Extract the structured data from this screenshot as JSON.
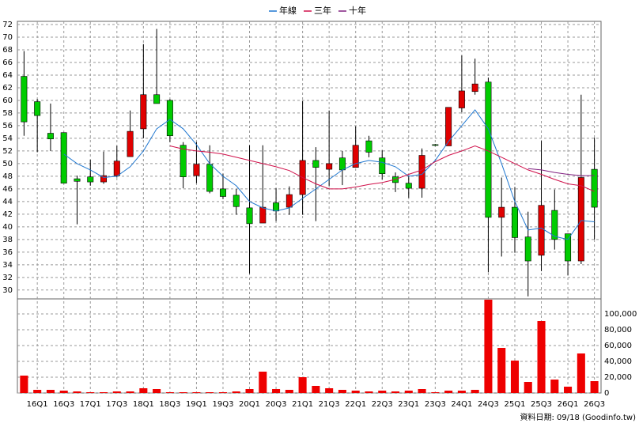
{
  "chart_data": {
    "type": "candlestick",
    "legend_position": "top",
    "categories": [
      null,
      "16Q1",
      null,
      "16Q3",
      null,
      "17Q1",
      null,
      "17Q3",
      null,
      "18Q1",
      null,
      "18Q3",
      null,
      "19Q1",
      null,
      "19Q3",
      null,
      "20Q1",
      null,
      "20Q3",
      null,
      "21Q1",
      null,
      "21Q3",
      null,
      "22Q1",
      null,
      "22Q3",
      null,
      "23Q1",
      null,
      "23Q3",
      null,
      "24Q1",
      null,
      "24Q3",
      null,
      "25Q1",
      null,
      "25Q3",
      null,
      "26Q1",
      null,
      "26Q3"
    ],
    "open": [
      63.8,
      59.8,
      54.8,
      54.9,
      47.6,
      47.9,
      47.1,
      48.1,
      51.1,
      55.5,
      60.9,
      60.0,
      52.9,
      48.1,
      49.9,
      46.0,
      45.0,
      43.0,
      40.6,
      43.8,
      43.1,
      45.1,
      50.5,
      49.1,
      50.9,
      49.4,
      53.6,
      50.9,
      47.9,
      46.9,
      46.1,
      53.0,
      52.8,
      58.8,
      61.4,
      62.9,
      41.5,
      43.1,
      38.4,
      35.5,
      42.6,
      38.9,
      34.6,
      49.1
    ],
    "high": [
      67.8,
      60.2,
      59.5,
      54.9,
      48.1,
      50.6,
      51.9,
      52.8,
      58.4,
      68.9,
      71.3,
      60.2,
      53.4,
      53.4,
      52.9,
      48.4,
      46.0,
      52.9,
      52.9,
      46.1,
      46.4,
      59.9,
      52.6,
      58.4,
      52.0,
      55.9,
      54.4,
      52.1,
      48.6,
      48.1,
      52.4,
      53.1,
      58.9,
      67.1,
      66.6,
      63.6,
      47.8,
      46.3,
      42.4,
      53.6,
      45.9,
      38.9,
      60.9,
      54.1
    ],
    "low": [
      54.4,
      51.8,
      52.0,
      46.9,
      40.4,
      46.5,
      46.8,
      47.8,
      51.1,
      54.0,
      59.5,
      53.4,
      46.1,
      46.9,
      45.3,
      44.4,
      41.9,
      32.6,
      40.6,
      40.9,
      41.9,
      41.9,
      40.9,
      46.4,
      46.6,
      49.4,
      51.0,
      47.5,
      45.5,
      44.6,
      44.6,
      52.8,
      52.8,
      58.1,
      60.9,
      32.8,
      35.3,
      35.9,
      29.0,
      33.0,
      36.4,
      32.3,
      34.1,
      38.0
    ],
    "close": [
      56.6,
      57.6,
      53.9,
      46.9,
      47.2,
      47.1,
      48.1,
      50.4,
      55.1,
      60.9,
      59.5,
      54.4,
      47.9,
      49.9,
      45.6,
      44.8,
      43.2,
      40.5,
      43.1,
      42.5,
      45.1,
      50.5,
      49.4,
      50.0,
      49.0,
      52.9,
      51.8,
      48.4,
      47.0,
      46.1,
      51.3,
      52.9,
      58.9,
      61.5,
      62.6,
      41.5,
      43.1,
      38.3,
      34.6,
      43.4,
      38.0,
      34.6,
      47.8,
      43.1
    ],
    "up_color": "#e00000",
    "down_color": "#00cc00",
    "series": [
      {
        "name": "年線",
        "color": "#1f77d0",
        "values": [
          null,
          null,
          null,
          51.5,
          50.0,
          49.0,
          47.8,
          48.0,
          49.5,
          52.0,
          55.5,
          57.0,
          55.5,
          53.0,
          50.0,
          48.0,
          46.5,
          44.0,
          43.0,
          42.5,
          43.0,
          44.5,
          46.0,
          47.5,
          49.0,
          50.0,
          50.5,
          50.2,
          49.5,
          48.0,
          48.3,
          50.5,
          53.5,
          56.0,
          58.5,
          55.5,
          50.0,
          44.0,
          39.5,
          39.8,
          38.5,
          38.0,
          41.0,
          40.8
        ]
      },
      {
        "name": "三年",
        "color": "#d0104a",
        "values": [
          null,
          null,
          null,
          null,
          null,
          null,
          null,
          null,
          null,
          null,
          null,
          52.8,
          52.3,
          52.0,
          51.8,
          51.5,
          51.0,
          50.5,
          50.0,
          49.5,
          48.9,
          47.8,
          46.8,
          46.0,
          46.0,
          46.3,
          46.7,
          47.0,
          47.5,
          48.3,
          49.0,
          50.3,
          51.3,
          52.0,
          52.8,
          52.0,
          51.0,
          50.0,
          49.0,
          48.3,
          47.5,
          46.8,
          46.5,
          45.6
        ]
      },
      {
        "name": "十年",
        "color": "#802080",
        "values": [
          null,
          null,
          null,
          null,
          null,
          null,
          null,
          null,
          null,
          null,
          null,
          null,
          null,
          null,
          null,
          null,
          null,
          null,
          null,
          null,
          null,
          null,
          null,
          null,
          null,
          null,
          null,
          null,
          null,
          null,
          null,
          null,
          null,
          null,
          null,
          null,
          null,
          null,
          49.2,
          49.0,
          48.6,
          48.3,
          48.1,
          48.1
        ]
      }
    ],
    "ylim": [
      28.6,
      72.5
    ],
    "yticks": [
      30,
      32,
      34,
      36,
      38,
      40,
      42,
      44,
      46,
      48,
      50,
      52,
      54,
      56,
      58,
      60,
      62,
      64,
      66,
      68,
      70,
      72
    ],
    "grid": true,
    "volume": {
      "type": "bar",
      "color": "#ee0000",
      "values": [
        22000,
        4000,
        4000,
        3000,
        2000,
        1000,
        1000,
        2000,
        2000,
        6000,
        5000,
        1000,
        1000,
        1000,
        1000,
        1000,
        2000,
        5000,
        27000,
        5000,
        4000,
        20000,
        9000,
        6000,
        4000,
        3000,
        2000,
        3000,
        2000,
        3000,
        5000,
        1000,
        3000,
        3000,
        4000,
        118000,
        57000,
        41000,
        14000,
        91000,
        17000,
        8000,
        50000,
        15000
      ],
      "ylim": [
        0,
        119000
      ],
      "yticks": [
        0,
        {
          "value": 20000,
          "label": "20,000"
        },
        {
          "value": 40000,
          "label": "40,000"
        },
        {
          "value": 60000,
          "label": "60,000"
        },
        {
          "value": 80000,
          "label": "80,000"
        },
        {
          "value": 100000,
          "label": "100,000"
        }
      ]
    },
    "footnote": "資料日期: 09/18 (Goodinfo.tw)"
  }
}
